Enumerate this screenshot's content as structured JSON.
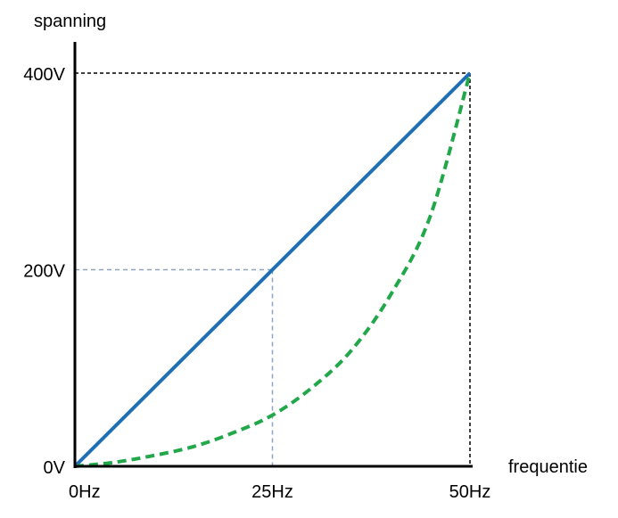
{
  "chart_data": {
    "type": "line",
    "ylabel": "spanning",
    "xlabel": "frequentie",
    "xlim": [
      0,
      50
    ],
    "ylim": [
      0,
      400
    ],
    "x_ticks": [
      {
        "value": 0,
        "label": "0Hz"
      },
      {
        "value": 25,
        "label": "25Hz"
      },
      {
        "value": 50,
        "label": "50Hz"
      }
    ],
    "y_ticks": [
      {
        "value": 0,
        "label": "0V"
      },
      {
        "value": 200,
        "label": "200V"
      },
      {
        "value": 400,
        "label": "400V"
      }
    ],
    "series": [
      {
        "style": "solid",
        "color": "#1f6fb5",
        "x": [
          0,
          50
        ],
        "y": [
          0,
          400
        ]
      },
      {
        "style": "dashed",
        "color": "#22a84a",
        "x": [
          0,
          5,
          10,
          15,
          20,
          25,
          30,
          35,
          40,
          45,
          50
        ],
        "y": [
          0,
          4,
          11,
          20,
          34,
          52,
          80,
          118,
          175,
          255,
          400
        ]
      }
    ],
    "reference_lines": [
      {
        "x": 25,
        "y": 200,
        "color": "#8fa4bd"
      },
      {
        "x": 50,
        "y": 400,
        "color": "#000000"
      }
    ]
  }
}
